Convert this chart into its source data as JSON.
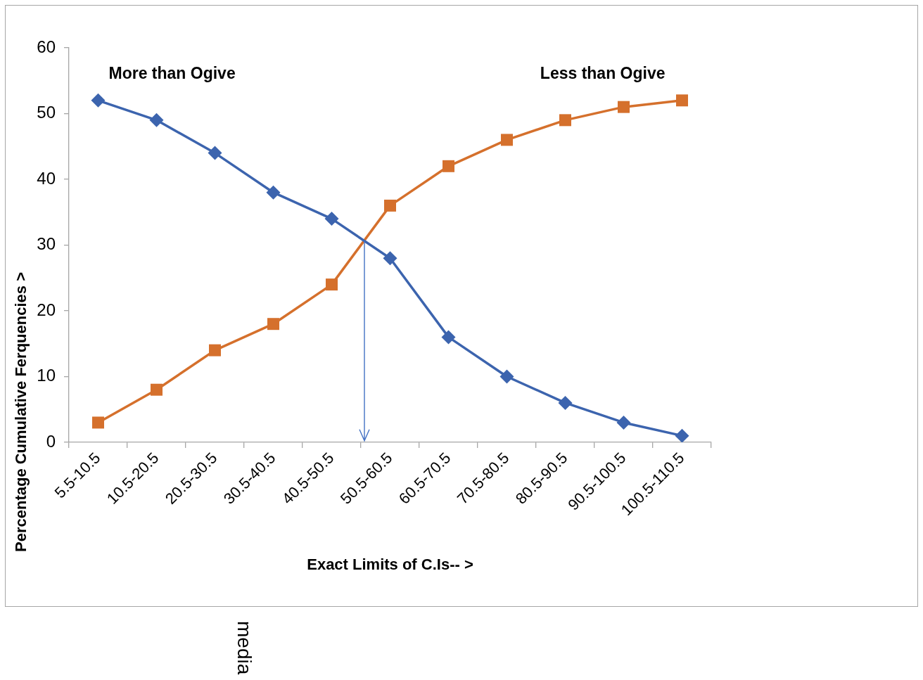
{
  "chart_data": {
    "type": "line",
    "xlabel": "Exact Limits of C.Is-- >",
    "ylabel": "Percentage Cumulative Ferquencies >",
    "categories": [
      "5.5-10.5",
      "10.5-20.5",
      "20.5-30.5",
      "30.5-40.5",
      "40.5-50.5",
      "50.5-60.5",
      "60.5-70.5",
      "70.5-80.5",
      "80.5-90.5",
      "90.5-100.5",
      "100.5-110.5"
    ],
    "series": [
      {
        "name": "More than Ogive",
        "color": "#3c64ae",
        "marker": "diamond",
        "values": [
          52,
          49,
          44,
          38,
          34,
          28,
          16,
          10,
          6,
          3,
          1
        ]
      },
      {
        "name": "Less than Ogive",
        "color": "#d5702c",
        "marker": "square",
        "values": [
          3,
          8,
          14,
          18,
          24,
          36,
          42,
          46,
          49,
          51,
          52
        ]
      }
    ],
    "ylim": [
      0,
      60
    ],
    "yticks": [
      0,
      10,
      20,
      30,
      40,
      50,
      60
    ],
    "grid": false,
    "legend": false,
    "annotations": [
      "media"
    ]
  }
}
